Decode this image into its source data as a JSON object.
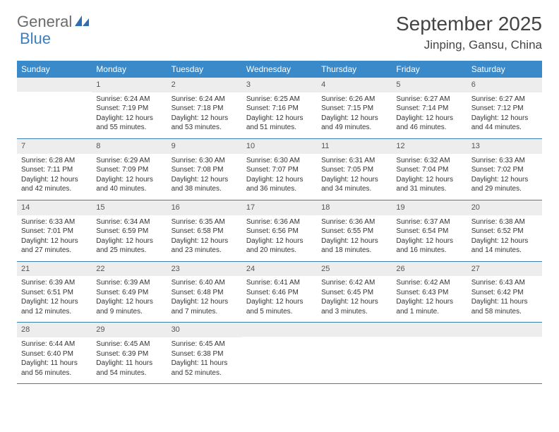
{
  "logo": {
    "part1": "General",
    "part2": "Blue"
  },
  "title": "September 2025",
  "location": "Jinping, Gansu, China",
  "colors": {
    "header_bg": "#3a8ac9",
    "header_text": "#ffffff",
    "daynum_bg": "#ededed",
    "row_border": "#3a7fb0",
    "logo_gray": "#6b6b6b",
    "logo_blue": "#3a7fc4"
  },
  "weekdays": [
    "Sunday",
    "Monday",
    "Tuesday",
    "Wednesday",
    "Thursday",
    "Friday",
    "Saturday"
  ],
  "weeks": [
    [
      null,
      {
        "n": "1",
        "sr": "Sunrise: 6:24 AM",
        "ss": "Sunset: 7:19 PM",
        "dl": "Daylight: 12 hours and 55 minutes."
      },
      {
        "n": "2",
        "sr": "Sunrise: 6:24 AM",
        "ss": "Sunset: 7:18 PM",
        "dl": "Daylight: 12 hours and 53 minutes."
      },
      {
        "n": "3",
        "sr": "Sunrise: 6:25 AM",
        "ss": "Sunset: 7:16 PM",
        "dl": "Daylight: 12 hours and 51 minutes."
      },
      {
        "n": "4",
        "sr": "Sunrise: 6:26 AM",
        "ss": "Sunset: 7:15 PM",
        "dl": "Daylight: 12 hours and 49 minutes."
      },
      {
        "n": "5",
        "sr": "Sunrise: 6:27 AM",
        "ss": "Sunset: 7:14 PM",
        "dl": "Daylight: 12 hours and 46 minutes."
      },
      {
        "n": "6",
        "sr": "Sunrise: 6:27 AM",
        "ss": "Sunset: 7:12 PM",
        "dl": "Daylight: 12 hours and 44 minutes."
      }
    ],
    [
      {
        "n": "7",
        "sr": "Sunrise: 6:28 AM",
        "ss": "Sunset: 7:11 PM",
        "dl": "Daylight: 12 hours and 42 minutes."
      },
      {
        "n": "8",
        "sr": "Sunrise: 6:29 AM",
        "ss": "Sunset: 7:09 PM",
        "dl": "Daylight: 12 hours and 40 minutes."
      },
      {
        "n": "9",
        "sr": "Sunrise: 6:30 AM",
        "ss": "Sunset: 7:08 PM",
        "dl": "Daylight: 12 hours and 38 minutes."
      },
      {
        "n": "10",
        "sr": "Sunrise: 6:30 AM",
        "ss": "Sunset: 7:07 PM",
        "dl": "Daylight: 12 hours and 36 minutes."
      },
      {
        "n": "11",
        "sr": "Sunrise: 6:31 AM",
        "ss": "Sunset: 7:05 PM",
        "dl": "Daylight: 12 hours and 34 minutes."
      },
      {
        "n": "12",
        "sr": "Sunrise: 6:32 AM",
        "ss": "Sunset: 7:04 PM",
        "dl": "Daylight: 12 hours and 31 minutes."
      },
      {
        "n": "13",
        "sr": "Sunrise: 6:33 AM",
        "ss": "Sunset: 7:02 PM",
        "dl": "Daylight: 12 hours and 29 minutes."
      }
    ],
    [
      {
        "n": "14",
        "sr": "Sunrise: 6:33 AM",
        "ss": "Sunset: 7:01 PM",
        "dl": "Daylight: 12 hours and 27 minutes."
      },
      {
        "n": "15",
        "sr": "Sunrise: 6:34 AM",
        "ss": "Sunset: 6:59 PM",
        "dl": "Daylight: 12 hours and 25 minutes."
      },
      {
        "n": "16",
        "sr": "Sunrise: 6:35 AM",
        "ss": "Sunset: 6:58 PM",
        "dl": "Daylight: 12 hours and 23 minutes."
      },
      {
        "n": "17",
        "sr": "Sunrise: 6:36 AM",
        "ss": "Sunset: 6:56 PM",
        "dl": "Daylight: 12 hours and 20 minutes."
      },
      {
        "n": "18",
        "sr": "Sunrise: 6:36 AM",
        "ss": "Sunset: 6:55 PM",
        "dl": "Daylight: 12 hours and 18 minutes."
      },
      {
        "n": "19",
        "sr": "Sunrise: 6:37 AM",
        "ss": "Sunset: 6:54 PM",
        "dl": "Daylight: 12 hours and 16 minutes."
      },
      {
        "n": "20",
        "sr": "Sunrise: 6:38 AM",
        "ss": "Sunset: 6:52 PM",
        "dl": "Daylight: 12 hours and 14 minutes."
      }
    ],
    [
      {
        "n": "21",
        "sr": "Sunrise: 6:39 AM",
        "ss": "Sunset: 6:51 PM",
        "dl": "Daylight: 12 hours and 12 minutes."
      },
      {
        "n": "22",
        "sr": "Sunrise: 6:39 AM",
        "ss": "Sunset: 6:49 PM",
        "dl": "Daylight: 12 hours and 9 minutes."
      },
      {
        "n": "23",
        "sr": "Sunrise: 6:40 AM",
        "ss": "Sunset: 6:48 PM",
        "dl": "Daylight: 12 hours and 7 minutes."
      },
      {
        "n": "24",
        "sr": "Sunrise: 6:41 AM",
        "ss": "Sunset: 6:46 PM",
        "dl": "Daylight: 12 hours and 5 minutes."
      },
      {
        "n": "25",
        "sr": "Sunrise: 6:42 AM",
        "ss": "Sunset: 6:45 PM",
        "dl": "Daylight: 12 hours and 3 minutes."
      },
      {
        "n": "26",
        "sr": "Sunrise: 6:42 AM",
        "ss": "Sunset: 6:43 PM",
        "dl": "Daylight: 12 hours and 1 minute."
      },
      {
        "n": "27",
        "sr": "Sunrise: 6:43 AM",
        "ss": "Sunset: 6:42 PM",
        "dl": "Daylight: 11 hours and 58 minutes."
      }
    ],
    [
      {
        "n": "28",
        "sr": "Sunrise: 6:44 AM",
        "ss": "Sunset: 6:40 PM",
        "dl": "Daylight: 11 hours and 56 minutes."
      },
      {
        "n": "29",
        "sr": "Sunrise: 6:45 AM",
        "ss": "Sunset: 6:39 PM",
        "dl": "Daylight: 11 hours and 54 minutes."
      },
      {
        "n": "30",
        "sr": "Sunrise: 6:45 AM",
        "ss": "Sunset: 6:38 PM",
        "dl": "Daylight: 11 hours and 52 minutes."
      },
      null,
      null,
      null,
      null
    ]
  ]
}
